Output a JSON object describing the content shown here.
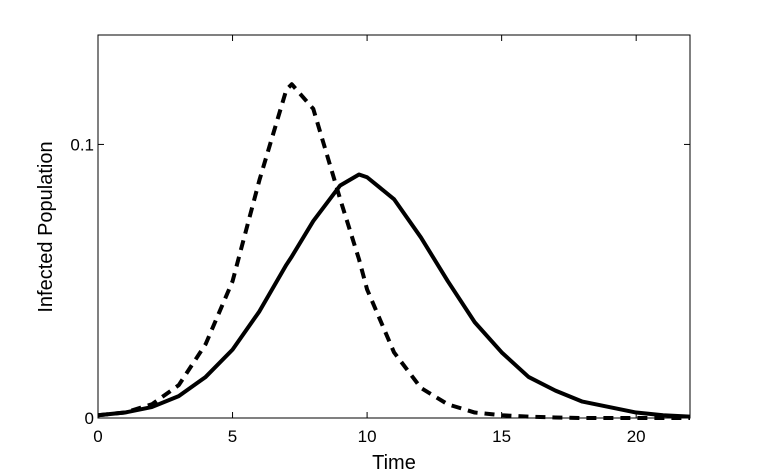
{
  "chart_data": {
    "type": "line",
    "x_label": "Time",
    "y_label": "Infected Population",
    "x": [
      0,
      1,
      2,
      3,
      4,
      5,
      6,
      7,
      7.2,
      8,
      9,
      9.7,
      10,
      11,
      12,
      13,
      14,
      15,
      16,
      17,
      18,
      19,
      20,
      21,
      22
    ],
    "series": [
      {
        "color": "#000000",
        "dash": false,
        "values": [
          0.001,
          0.002,
          0.004,
          0.008,
          0.015,
          0.025,
          0.039,
          0.056,
          0.059,
          0.072,
          0.085,
          0.089,
          0.088,
          0.08,
          0.066,
          0.05,
          0.035,
          0.024,
          0.015,
          0.01,
          0.006,
          0.004,
          0.002,
          0.001,
          0.0005
        ]
      },
      {
        "color": "#000000",
        "dash": true,
        "values": [
          0.001,
          0.002,
          0.005,
          0.012,
          0.027,
          0.05,
          0.087,
          0.12,
          0.122,
          0.113,
          0.08,
          0.058,
          0.047,
          0.024,
          0.011,
          0.005,
          0.002,
          0.001,
          0.0005,
          0.0002,
          0,
          0,
          0,
          0,
          0
        ]
      }
    ],
    "xlim": [
      0,
      22
    ],
    "xticks": [
      0,
      5,
      10,
      15,
      20
    ],
    "ylim": [
      0,
      0.14
    ],
    "yticks": [
      0,
      0.1
    ],
    "grid": false
  }
}
